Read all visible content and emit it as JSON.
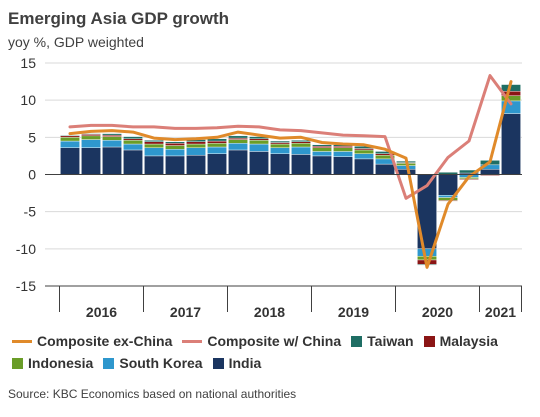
{
  "title": "Emerging Asia GDP growth",
  "subtitle": "yoy %, GDP weighted",
  "source": "Source: KBC Economics based on national authorities",
  "colors": {
    "india": "#1b3560",
    "south_korea": "#2e97cd",
    "indonesia": "#6a9d28",
    "malaysia": "#8b1515",
    "taiwan": "#1f6e64",
    "composite_ex_china": "#e08a2a",
    "composite_w_china": "#db7f78"
  },
  "legend": [
    {
      "key": "composite_ex_china",
      "label": "Composite ex-China",
      "kind": "line"
    },
    {
      "key": "composite_w_china",
      "label": "Composite w/ China",
      "kind": "line"
    },
    {
      "key": "taiwan",
      "label": "Taiwan",
      "kind": "box"
    },
    {
      "key": "malaysia",
      "label": "Malaysia",
      "kind": "box"
    },
    {
      "key": "indonesia",
      "label": "Indonesia",
      "kind": "box"
    },
    {
      "key": "south_korea",
      "label": "South Korea",
      "kind": "box"
    },
    {
      "key": "india",
      "label": "India",
      "kind": "box"
    }
  ],
  "chart_data": {
    "type": "bar",
    "stacked": true,
    "title": "Emerging Asia GDP growth",
    "subtitle": "yoy %, GDP weighted",
    "xlabel": "",
    "ylabel": "",
    "ylim": [
      -15,
      15
    ],
    "yticks": [
      15,
      10,
      5,
      0,
      -5,
      -10,
      -15
    ],
    "year_labels": [
      "2016",
      "2017",
      "2018",
      "2019",
      "2020",
      "2021"
    ],
    "year_label_positions": [
      2.5,
      6.5,
      10.5,
      14.5,
      18.5,
      21.5
    ],
    "x": [
      "Q1 2016",
      "Q2 2016",
      "Q3 2016",
      "Q4 2016",
      "Q1 2017",
      "Q2 2017",
      "Q3 2017",
      "Q4 2017",
      "Q1 2018",
      "Q2 2018",
      "Q3 2018",
      "Q4 2018",
      "Q1 2019",
      "Q2 2019",
      "Q3 2019",
      "Q4 2019",
      "Q1 2020",
      "Q2 2020",
      "Q3 2020",
      "Q4 2020",
      "Q1 2021",
      "Q2 2021"
    ],
    "bar_series": [
      {
        "name": "India",
        "key": "india",
        "values": [
          3.6,
          3.6,
          3.7,
          3.3,
          2.5,
          2.5,
          2.6,
          2.8,
          3.3,
          3.1,
          2.8,
          2.7,
          2.5,
          2.4,
          2.1,
          1.4,
          0.7,
          -10.0,
          -2.8,
          0.2,
          0.7,
          8.2
        ]
      },
      {
        "name": "South Korea",
        "key": "south_korea",
        "values": [
          0.9,
          1.1,
          0.9,
          0.8,
          1.1,
          0.9,
          1.0,
          0.9,
          0.9,
          1.0,
          0.8,
          1.0,
          0.6,
          0.7,
          0.7,
          0.7,
          0.5,
          -1.0,
          -0.3,
          -0.4,
          0.6,
          1.7
        ]
      },
      {
        "name": "Indonesia",
        "key": "indonesia",
        "values": [
          0.5,
          0.5,
          0.5,
          0.5,
          0.5,
          0.5,
          0.5,
          0.5,
          0.5,
          0.5,
          0.5,
          0.5,
          0.5,
          0.5,
          0.5,
          0.5,
          0.3,
          -0.5,
          -0.4,
          -0.2,
          -0.1,
          0.7
        ]
      },
      {
        "name": "Malaysia",
        "key": "malaysia",
        "values": [
          0.2,
          0.2,
          0.2,
          0.2,
          0.3,
          0.3,
          0.3,
          0.3,
          0.2,
          0.2,
          0.2,
          0.2,
          0.2,
          0.2,
          0.2,
          0.2,
          0.1,
          -0.6,
          -0.1,
          -0.1,
          -0.1,
          0.6
        ]
      },
      {
        "name": "Taiwan",
        "key": "taiwan",
        "values": [
          0.1,
          0.1,
          0.2,
          0.3,
          0.2,
          0.2,
          0.3,
          0.3,
          0.3,
          0.3,
          0.2,
          0.2,
          0.2,
          0.2,
          0.3,
          0.3,
          0.2,
          -0.1,
          0.3,
          0.4,
          0.6,
          0.9
        ]
      }
    ],
    "line_series": [
      {
        "name": "Composite ex-China",
        "key": "composite_ex_china",
        "values": [
          5.5,
          5.8,
          5.9,
          5.7,
          4.9,
          4.7,
          4.8,
          5.0,
          5.7,
          5.3,
          4.9,
          5.0,
          4.3,
          4.1,
          4.0,
          3.4,
          2.2,
          -12.5,
          -4.0,
          -0.3,
          1.7,
          12.5
        ]
      },
      {
        "name": "Composite w/ China",
        "key": "composite_w_china",
        "values": [
          6.4,
          6.6,
          6.6,
          6.4,
          6.4,
          6.2,
          6.2,
          6.3,
          6.5,
          6.4,
          6.0,
          5.9,
          5.6,
          5.3,
          5.2,
          5.1,
          -3.2,
          -1.5,
          2.3,
          4.5,
          13.3,
          9.5
        ]
      }
    ]
  }
}
